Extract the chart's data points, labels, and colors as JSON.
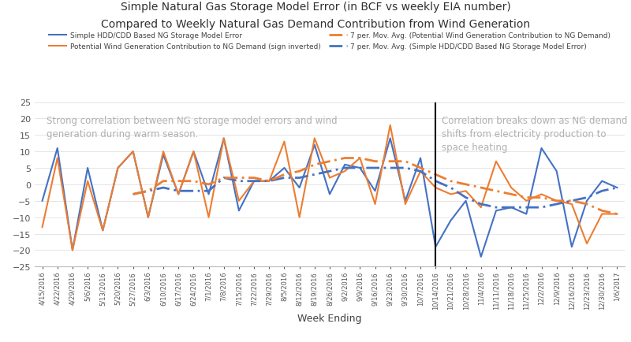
{
  "title_line1": "Simple Natural Gas Storage Model Error (in BCF vs weekly EIA number)",
  "title_line2": "Compared to Weekly Natural Gas Demand Contribution from Wind Generation",
  "xlabel": "Week Ending",
  "ylim": [
    -25,
    25
  ],
  "yticks": [
    -25,
    -20,
    -15,
    -10,
    -5,
    0,
    5,
    10,
    15,
    20,
    25
  ],
  "blue_color": "#4472C4",
  "orange_color": "#ED7D31",
  "vline_index": 26,
  "annotation_left": "Strong correlation between NG storage model errors and wind\ngeneration during warm season.",
  "annotation_right": "Correlation breaks down as NG demand\nshifts from electricity production to\nspace heating",
  "dates": [
    "4/15/2016",
    "4/22/2016",
    "4/29/2016",
    "5/6/2016",
    "5/13/2016",
    "5/20/2016",
    "5/27/2016",
    "6/3/2016",
    "6/10/2016",
    "6/17/2016",
    "6/24/2016",
    "7/1/2016",
    "7/8/2016",
    "7/15/2016",
    "7/22/2016",
    "7/29/2016",
    "8/5/2016",
    "8/12/2016",
    "8/19/2016",
    "8/26/2016",
    "9/2/2016",
    "9/9/2016",
    "9/16/2016",
    "9/23/2016",
    "9/30/2016",
    "10/7/2016",
    "10/14/2016",
    "10/21/2016",
    "10/28/2016",
    "11/4/2016",
    "11/11/2016",
    "11/18/2016",
    "11/25/2016",
    "12/2/2016",
    "12/9/2016",
    "12/16/2016",
    "12/23/2016",
    "12/30/2016",
    "1/6/2017"
  ],
  "blue_values": [
    -5,
    11,
    -20,
    5,
    -14,
    5,
    10,
    -10,
    9,
    -3,
    10,
    -3,
    14,
    -8,
    1,
    1,
    5,
    -1,
    12,
    -3,
    6,
    5,
    -2,
    14,
    -5,
    8,
    -19,
    -11,
    -5,
    -22,
    -8,
    -7,
    -9,
    11,
    4,
    -19,
    -5,
    1,
    -1
  ],
  "orange_values": [
    -13,
    8,
    -20,
    1,
    -14,
    5,
    10,
    -10,
    10,
    -3,
    10,
    -10,
    14,
    -5,
    1,
    1,
    13,
    -10,
    14,
    2,
    4,
    8,
    -6,
    18,
    -6,
    4,
    -1,
    -3,
    -2,
    -7,
    7,
    -1,
    -5,
    -3,
    -5,
    -6,
    -18,
    -9,
    -9
  ],
  "blue_ma_values": [
    null,
    null,
    null,
    null,
    null,
    null,
    -3,
    -2,
    -1,
    -2,
    -2,
    -2,
    2,
    1,
    1,
    1,
    2,
    2,
    3,
    4,
    5,
    5,
    5,
    5,
    5,
    4,
    1,
    -1,
    -4,
    -6,
    -7,
    -7,
    -7,
    -7,
    -6,
    -5,
    -4,
    -2,
    -1
  ],
  "orange_ma_values": [
    null,
    null,
    null,
    null,
    null,
    null,
    -3,
    -2,
    1,
    1,
    1,
    0,
    2,
    2,
    2,
    1,
    3,
    4,
    6,
    7,
    8,
    8,
    7,
    7,
    7,
    5,
    3,
    1,
    0,
    -1,
    -2,
    -3,
    -4,
    -4,
    -5,
    -5,
    -6,
    -8,
    -9
  ],
  "legend_labels": [
    "Simple HDD/CDD Based NG Storage Model Error",
    "Potential Wind Generation Contribution to NG Demand (sign inverted)",
    "7 per. Mov. Avg. (Potential Wind Generation Contribution to NG Demand)",
    "7 per. Mov. Avg. (Simple HDD/CDD Based NG Storage Model Error)"
  ],
  "title_fontsize": 10,
  "legend_fontsize": 6.5,
  "annot_fontsize": 8.5,
  "tick_fontsize": 6,
  "ytick_fontsize": 8,
  "xlabel_fontsize": 9
}
